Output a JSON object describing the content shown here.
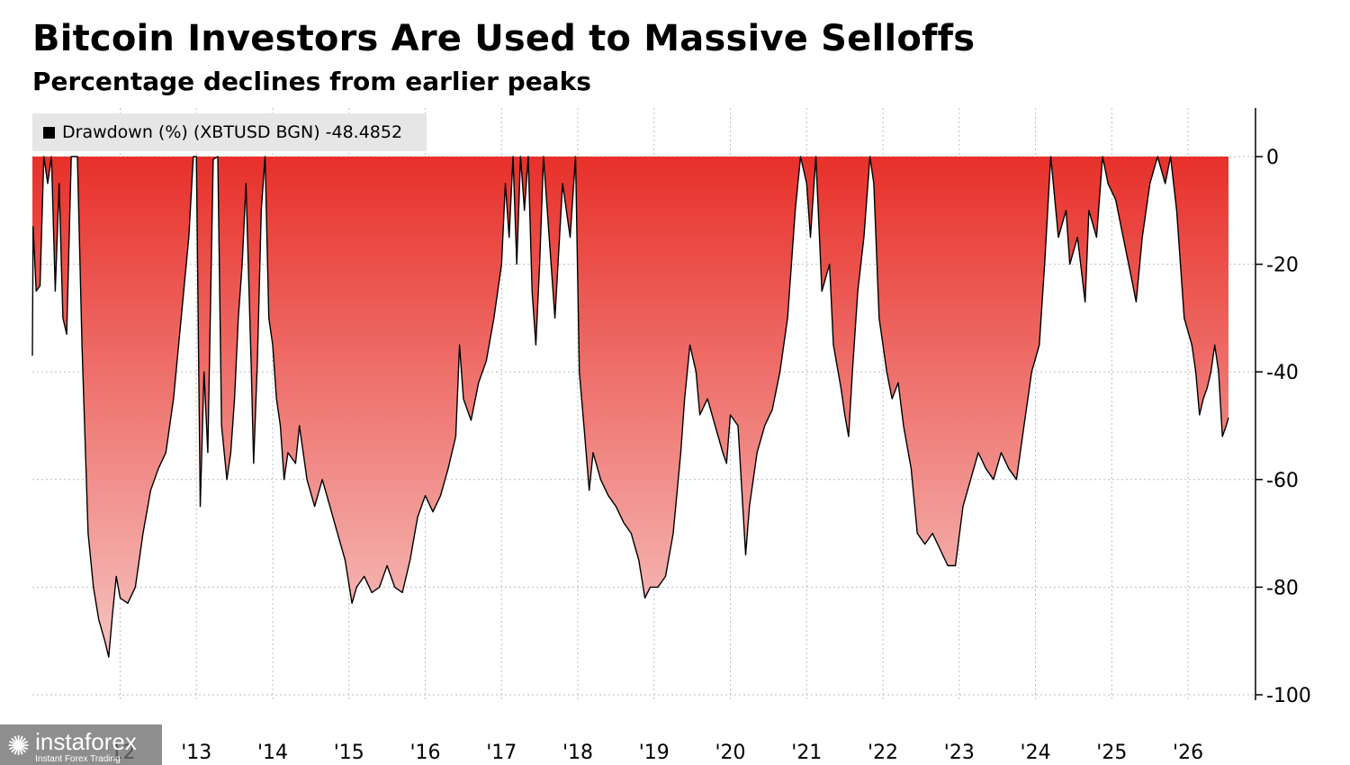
{
  "header": {
    "title": "Bitcoin Investors Are Used to Massive Selloffs",
    "subtitle": "Percentage declines from earlier peaks"
  },
  "legend": {
    "label": "Drawdown (%) (XBTUSD BGN) -48.4852"
  },
  "watermark": {
    "brand": "instaforex",
    "tagline": "Instant Forex Trading"
  },
  "colors": {
    "fill_top": "#e8302a",
    "fill_bottom": "#f6c3c0",
    "line": "#000000"
  },
  "chart_data": {
    "type": "area",
    "title": "Bitcoin Investors Are Used to Massive Selloffs",
    "subtitle": "Percentage declines from earlier peaks",
    "series": [
      {
        "name": "Drawdown (%) (XBTUSD BGN)",
        "last_value": -48.4852,
        "points": [
          [
            2010.85,
            -37
          ],
          [
            2010.86,
            -13
          ],
          [
            2010.9,
            -25
          ],
          [
            2010.95,
            -24
          ],
          [
            2011.0,
            0
          ],
          [
            2011.05,
            -5
          ],
          [
            2011.1,
            0
          ],
          [
            2011.15,
            -25
          ],
          [
            2011.2,
            -5
          ],
          [
            2011.25,
            -30
          ],
          [
            2011.3,
            -33
          ],
          [
            2011.36,
            0
          ],
          [
            2011.44,
            0
          ],
          [
            2011.5,
            -35
          ],
          [
            2011.58,
            -70
          ],
          [
            2011.65,
            -80
          ],
          [
            2011.72,
            -86
          ],
          [
            2011.8,
            -90
          ],
          [
            2011.85,
            -93
          ],
          [
            2011.9,
            -85
          ],
          [
            2011.95,
            -78
          ],
          [
            2012.0,
            -82
          ],
          [
            2012.1,
            -83
          ],
          [
            2012.2,
            -80
          ],
          [
            2012.3,
            -70
          ],
          [
            2012.4,
            -62
          ],
          [
            2012.5,
            -58
          ],
          [
            2012.6,
            -55
          ],
          [
            2012.7,
            -45
          ],
          [
            2012.8,
            -30
          ],
          [
            2012.9,
            -15
          ],
          [
            2012.96,
            0
          ],
          [
            2013.0,
            0
          ],
          [
            2013.05,
            -65
          ],
          [
            2013.1,
            -40
          ],
          [
            2013.15,
            -55
          ],
          [
            2013.22,
            -0.5
          ],
          [
            2013.28,
            0
          ],
          [
            2013.33,
            -50
          ],
          [
            2013.4,
            -60
          ],
          [
            2013.45,
            -55
          ],
          [
            2013.5,
            -45
          ],
          [
            2013.55,
            -30
          ],
          [
            2013.6,
            -20
          ],
          [
            2013.65,
            -5
          ],
          [
            2013.72,
            -40
          ],
          [
            2013.75,
            -57
          ],
          [
            2013.8,
            -38
          ],
          [
            2013.85,
            -10
          ],
          [
            2013.9,
            0
          ],
          [
            2013.95,
            -30
          ],
          [
            2014.0,
            -35
          ],
          [
            2014.05,
            -45
          ],
          [
            2014.1,
            -50
          ],
          [
            2014.15,
            -60
          ],
          [
            2014.2,
            -55
          ],
          [
            2014.3,
            -57
          ],
          [
            2014.35,
            -50
          ],
          [
            2014.45,
            -60
          ],
          [
            2014.55,
            -65
          ],
          [
            2014.65,
            -60
          ],
          [
            2014.75,
            -65
          ],
          [
            2014.85,
            -70
          ],
          [
            2014.95,
            -75
          ],
          [
            2015.04,
            -83
          ],
          [
            2015.1,
            -80
          ],
          [
            2015.2,
            -78
          ],
          [
            2015.3,
            -81
          ],
          [
            2015.4,
            -80
          ],
          [
            2015.5,
            -76
          ],
          [
            2015.6,
            -80
          ],
          [
            2015.7,
            -81
          ],
          [
            2015.8,
            -75
          ],
          [
            2015.9,
            -67
          ],
          [
            2016.0,
            -63
          ],
          [
            2016.1,
            -66
          ],
          [
            2016.2,
            -63
          ],
          [
            2016.3,
            -58
          ],
          [
            2016.4,
            -52
          ],
          [
            2016.45,
            -35
          ],
          [
            2016.5,
            -45
          ],
          [
            2016.6,
            -49
          ],
          [
            2016.7,
            -42
          ],
          [
            2016.8,
            -38
          ],
          [
            2016.9,
            -30
          ],
          [
            2017.0,
            -20
          ],
          [
            2017.05,
            -5
          ],
          [
            2017.1,
            -15
          ],
          [
            2017.15,
            0
          ],
          [
            2017.2,
            -20
          ],
          [
            2017.25,
            0
          ],
          [
            2017.3,
            -10
          ],
          [
            2017.35,
            0
          ],
          [
            2017.4,
            -25
          ],
          [
            2017.45,
            -35
          ],
          [
            2017.5,
            -20
          ],
          [
            2017.55,
            0
          ],
          [
            2017.6,
            -10
          ],
          [
            2017.7,
            -30
          ],
          [
            2017.8,
            -5
          ],
          [
            2017.9,
            -15
          ],
          [
            2017.97,
            0
          ],
          [
            2018.02,
            -40
          ],
          [
            2018.08,
            -50
          ],
          [
            2018.15,
            -62
          ],
          [
            2018.2,
            -55
          ],
          [
            2018.3,
            -60
          ],
          [
            2018.4,
            -63
          ],
          [
            2018.5,
            -65
          ],
          [
            2018.6,
            -68
          ],
          [
            2018.7,
            -70
          ],
          [
            2018.8,
            -75
          ],
          [
            2018.88,
            -82
          ],
          [
            2018.95,
            -80
          ],
          [
            2019.05,
            -80
          ],
          [
            2019.15,
            -78
          ],
          [
            2019.25,
            -70
          ],
          [
            2019.35,
            -55
          ],
          [
            2019.4,
            -45
          ],
          [
            2019.47,
            -35
          ],
          [
            2019.55,
            -40
          ],
          [
            2019.6,
            -48
          ],
          [
            2019.7,
            -45
          ],
          [
            2019.8,
            -50
          ],
          [
            2019.9,
            -55
          ],
          [
            2019.95,
            -57
          ],
          [
            2020.0,
            -48
          ],
          [
            2020.1,
            -50
          ],
          [
            2020.2,
            -74
          ],
          [
            2020.25,
            -65
          ],
          [
            2020.35,
            -55
          ],
          [
            2020.45,
            -50
          ],
          [
            2020.55,
            -47
          ],
          [
            2020.65,
            -40
          ],
          [
            2020.75,
            -30
          ],
          [
            2020.85,
            -10
          ],
          [
            2020.92,
            0
          ],
          [
            2021.0,
            -5
          ],
          [
            2021.05,
            -15
          ],
          [
            2021.12,
            0
          ],
          [
            2021.2,
            -25
          ],
          [
            2021.3,
            -20
          ],
          [
            2021.35,
            -35
          ],
          [
            2021.45,
            -43
          ],
          [
            2021.5,
            -48
          ],
          [
            2021.55,
            -52
          ],
          [
            2021.6,
            -40
          ],
          [
            2021.67,
            -25
          ],
          [
            2021.75,
            -15
          ],
          [
            2021.83,
            0
          ],
          [
            2021.88,
            -5
          ],
          [
            2021.95,
            -30
          ],
          [
            2022.05,
            -40
          ],
          [
            2022.12,
            -45
          ],
          [
            2022.2,
            -42
          ],
          [
            2022.27,
            -50
          ],
          [
            2022.37,
            -58
          ],
          [
            2022.45,
            -70
          ],
          [
            2022.55,
            -72
          ],
          [
            2022.65,
            -70
          ],
          [
            2022.75,
            -73
          ],
          [
            2022.85,
            -76
          ],
          [
            2022.95,
            -76
          ],
          [
            2023.05,
            -65
          ],
          [
            2023.15,
            -60
          ],
          [
            2023.25,
            -55
          ],
          [
            2023.35,
            -58
          ],
          [
            2023.45,
            -60
          ],
          [
            2023.55,
            -55
          ],
          [
            2023.65,
            -58
          ],
          [
            2023.75,
            -60
          ],
          [
            2023.85,
            -50
          ],
          [
            2023.95,
            -40
          ],
          [
            2024.05,
            -35
          ],
          [
            2024.12,
            -20
          ],
          [
            2024.2,
            0
          ],
          [
            2024.3,
            -15
          ],
          [
            2024.4,
            -10
          ],
          [
            2024.45,
            -20
          ],
          [
            2024.55,
            -15
          ],
          [
            2024.65,
            -27
          ],
          [
            2024.7,
            -10
          ],
          [
            2024.8,
            -15
          ],
          [
            2024.88,
            0
          ],
          [
            2024.95,
            -5
          ],
          [
            2025.05,
            -8
          ],
          [
            2025.15,
            -15
          ],
          [
            2025.25,
            -22
          ],
          [
            2025.32,
            -27
          ],
          [
            2025.4,
            -15
          ],
          [
            2025.5,
            -5
          ],
          [
            2025.6,
            0
          ],
          [
            2025.7,
            -5
          ],
          [
            2025.77,
            0
          ],
          [
            2025.85,
            -10
          ],
          [
            2025.95,
            -30
          ],
          [
            2026.05,
            -35
          ],
          [
            2026.1,
            -40
          ],
          [
            2026.15,
            -48
          ],
          [
            2026.2,
            -45
          ],
          [
            2026.25,
            -43
          ],
          [
            2026.3,
            -40
          ],
          [
            2026.35,
            -35
          ],
          [
            2026.4,
            -40
          ],
          [
            2026.45,
            -52
          ],
          [
            2026.5,
            -50
          ],
          [
            2026.53,
            -48.5
          ]
        ]
      }
    ],
    "x_tick_labels": [
      "'12",
      "'13",
      "'14",
      "'15",
      "'16",
      "'17",
      "'18",
      "'19",
      "'20",
      "'21",
      "'22",
      "'23",
      "'24",
      "'25",
      "'26"
    ],
    "x_tick_values": [
      2012.0,
      2013.0,
      2014.0,
      2015.0,
      2016.0,
      2017.0,
      2018.0,
      2019.0,
      2020.0,
      2021.0,
      2022.0,
      2023.0,
      2024.0,
      2025.0,
      2026.0
    ],
    "y_ticks": [
      0,
      -20,
      -40,
      -60,
      -80,
      -100
    ],
    "y_tick_labels": [
      "0",
      "-20",
      "-40",
      "-60",
      "-80",
      "-100"
    ],
    "xlim": [
      2010.85,
      2026.53
    ],
    "ylim": [
      -100,
      0
    ],
    "grid": true,
    "y_axis_side": "right",
    "legend_placement": "top-left"
  }
}
